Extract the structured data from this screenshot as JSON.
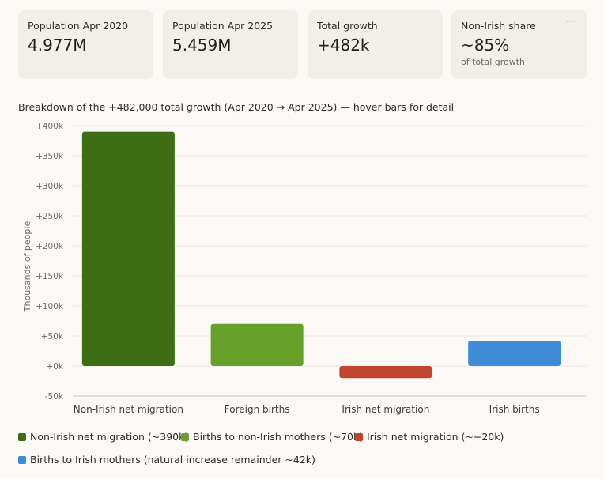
{
  "cards": [
    {
      "label": "Population Apr 2020",
      "value": "4.977M"
    },
    {
      "label": "Population Apr 2025",
      "value": "5.459M"
    },
    {
      "label": "Total growth",
      "value": "+482k"
    },
    {
      "label": "Non-Irish share",
      "value": "~85%",
      "sub": "of total growth",
      "menu": "···"
    }
  ],
  "caption": "Breakdown of the +482,000 total growth (Apr 2020 → Apr 2025) — hover bars for detail",
  "chart_data": {
    "type": "bar",
    "title": "Breakdown of the +482,000 total growth (Apr 2020 → Apr 2025)",
    "ylabel": "Thousands of people",
    "xlabel": "",
    "ylim": [
      -50,
      400
    ],
    "yticks": [
      -50,
      0,
      50,
      100,
      150,
      200,
      250,
      300,
      350,
      400
    ],
    "ytick_labels": [
      "-50k",
      "+0k",
      "+50k",
      "+100k",
      "+150k",
      "+200k",
      "+250k",
      "+300k",
      "+350k",
      "+400k"
    ],
    "grid": true,
    "categories": [
      "Non-Irish net migration",
      "Foreign births",
      "Irish net migration",
      "Irish births"
    ],
    "values": [
      390,
      70,
      -20,
      42
    ],
    "colors": [
      "#3d6e14",
      "#67a02a",
      "#c0452e",
      "#3f8bd8"
    ]
  },
  "legend": [
    {
      "label": "Non-Irish net migration (~390k)",
      "color": "#3d6e14"
    },
    {
      "label": "Births to non-Irish mothers (~70k)",
      "color": "#67a02a"
    },
    {
      "label": "Irish net migration (~−20k)",
      "color": "#c0452e"
    },
    {
      "label": "Births to Irish mothers (natural increase remainder ~42k)",
      "color": "#3f8bd8"
    }
  ]
}
